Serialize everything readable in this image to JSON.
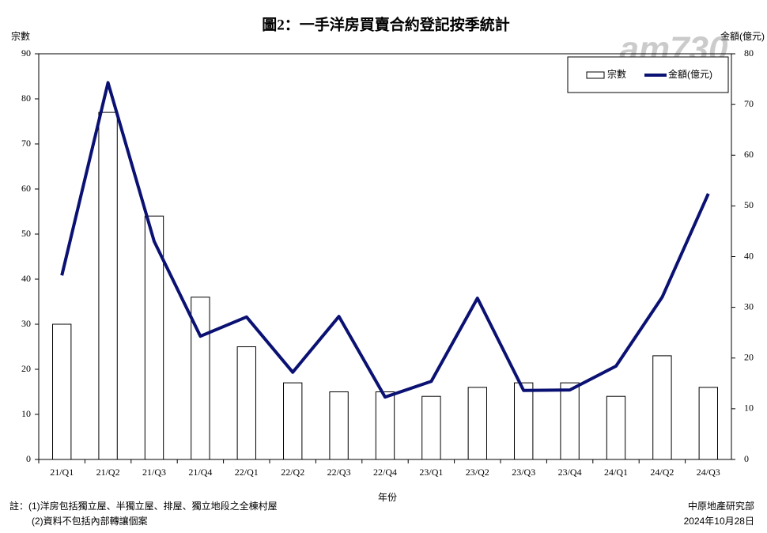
{
  "chart_data": {
    "type": "combo",
    "title": "圖2：一手洋房買賣合約登記按季統計",
    "y_label": "宗數",
    "y2_label": "金額(億元)",
    "x_label": "年份",
    "categories": [
      "21/Q1",
      "21/Q2",
      "21/Q3",
      "21/Q4",
      "22/Q1",
      "22/Q2",
      "22/Q3",
      "22/Q4",
      "23/Q1",
      "23/Q2",
      "23/Q3",
      "23/Q4",
      "24/Q1",
      "24/Q2",
      "24/Q3"
    ],
    "series": [
      {
        "name": "宗數",
        "type": "bar",
        "color": "#ffffff",
        "values": [
          30,
          77,
          54,
          36,
          25,
          17,
          15,
          15,
          14,
          16,
          17,
          17,
          14,
          23,
          16
        ]
      },
      {
        "name": "金額(億元)",
        "type": "line",
        "axis": "y2",
        "color": "#0a1172",
        "values": [
          36.3,
          74.3,
          43,
          24.3,
          28.1,
          17.2,
          28.2,
          12.3,
          15.4,
          31.8,
          13.6,
          13.7,
          18.4,
          32,
          52.4
        ]
      }
    ],
    "ylim": [
      0,
      90
    ],
    "yticks": [
      0,
      10,
      20,
      30,
      40,
      50,
      60,
      70,
      80,
      90
    ],
    "y2lim": [
      0,
      80
    ],
    "y2ticks": [
      0,
      10,
      20,
      30,
      40,
      50,
      60,
      70,
      80
    ],
    "legend": "top-right",
    "notes": [
      "註：(1)洋房包括獨立屋、半獨立屋、排屋、獨立地段之全棟村屋",
      "(2)資料不包括內部轉讓個案"
    ],
    "source": [
      "中原地產研究部",
      "2024年10月28日"
    ],
    "watermark": "am730"
  }
}
